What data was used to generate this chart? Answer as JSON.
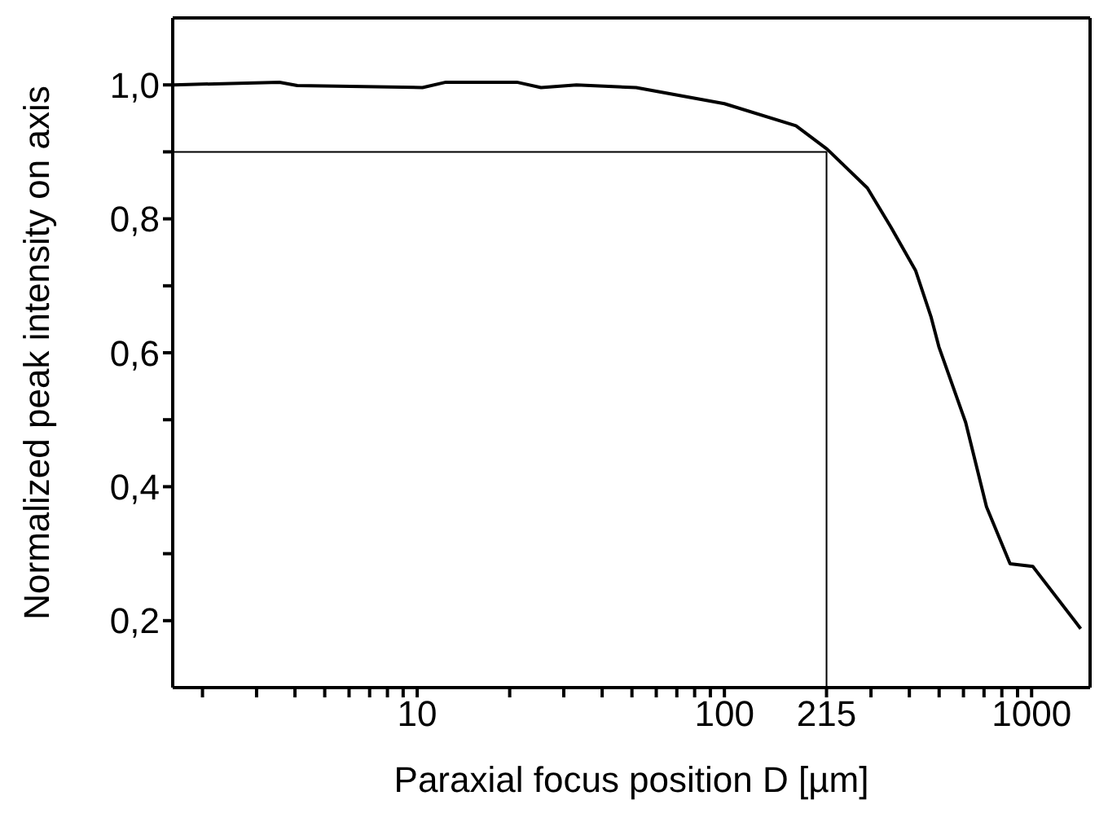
{
  "chart_data": {
    "type": "line",
    "xlabel": "Paraxial focus position D [µm]",
    "ylabel": "Normalized peak intensity on axis",
    "log": "x",
    "marker": "none",
    "line_style": "solid",
    "xlim": [
      1.6,
      1550
    ],
    "ylim": [
      0.1,
      1.1
    ],
    "xticks": [
      {
        "value": 2,
        "label": null
      },
      {
        "value": 3,
        "label": null
      },
      {
        "value": 4,
        "label": null
      },
      {
        "value": 5,
        "label": null
      },
      {
        "value": 6,
        "label": null
      },
      {
        "value": 7,
        "label": null
      },
      {
        "value": 8,
        "label": null
      },
      {
        "value": 9,
        "label": null
      },
      10,
      {
        "value": 20,
        "label": null
      },
      {
        "value": 30,
        "label": null
      },
      {
        "value": 40,
        "label": null
      },
      {
        "value": 50,
        "label": null
      },
      {
        "value": 60,
        "label": null
      },
      {
        "value": 70,
        "label": null
      },
      {
        "value": 80,
        "label": null
      },
      {
        "value": 90,
        "label": null
      },
      100,
      215,
      {
        "value": 300,
        "label": null
      },
      {
        "value": 400,
        "label": null
      },
      {
        "value": 500,
        "label": null
      },
      {
        "value": 600,
        "label": null
      },
      {
        "value": 700,
        "label": null
      },
      {
        "value": 800,
        "label": null
      },
      {
        "value": 900,
        "label": null
      },
      1000
    ],
    "yticks": [
      {
        "value": 0.2,
        "label": "0,2"
      },
      {
        "value": 0.3,
        "label": null
      },
      {
        "value": 0.4,
        "label": "0,4"
      },
      {
        "value": 0.5,
        "label": null
      },
      {
        "value": 0.6,
        "label": "0,6"
      },
      {
        "value": 0.7,
        "label": null
      },
      {
        "value": 0.8,
        "label": "0,8"
      },
      {
        "value": 0.9,
        "label": null
      },
      {
        "value": 1.0,
        "label": "1,0"
      }
    ],
    "series": [
      {
        "color": "#000000",
        "x": [
          1.61,
          3.56,
          4.07,
          10.4,
          12.4,
          21.1,
          25.3,
          33,
          51.6,
          100,
          171,
          216,
          292,
          348,
          419,
          471,
          499,
          610,
          713,
          851,
          1009,
          1445
        ],
        "values": [
          1.0,
          1.004,
          0.999,
          0.996,
          1.004,
          1.004,
          0.996,
          1.0,
          0.996,
          0.972,
          0.939,
          0.904,
          0.846,
          0.788,
          0.723,
          0.653,
          0.609,
          0.496,
          0.37,
          0.285,
          0.281,
          0.188
        ]
      },
      {
        "color": "#000000",
        "x": [
          1.6,
          215,
          215
        ],
        "values": [
          0.9,
          0.9,
          0.1
        ]
      }
    ]
  }
}
